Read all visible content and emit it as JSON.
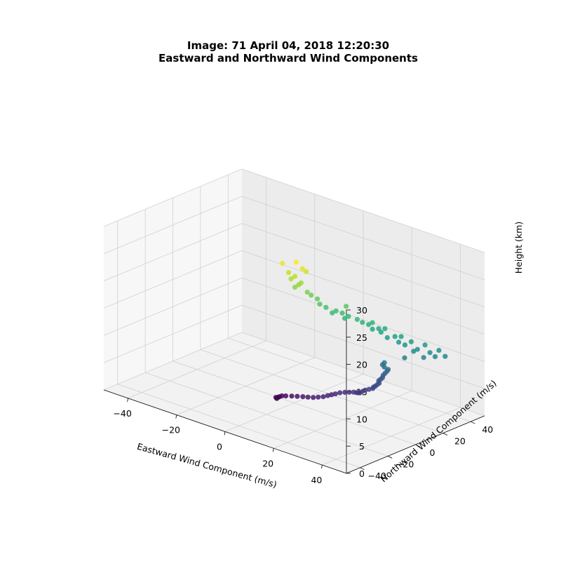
{
  "chart_data": {
    "type": "scatter3d",
    "title_line1": "Image: 71 April 04, 2018 12:20:30",
    "title_line2": "Eastward and Northward Wind Components",
    "xlabel": "Eastward Wind Component (m/s)",
    "ylabel": "Northward Wind Component (m/s)",
    "zlabel": "Height (km)",
    "xlim": [
      -50,
      50
    ],
    "ylim": [
      -50,
      50
    ],
    "zlim": [
      0,
      30
    ],
    "xticks": [
      -40,
      -20,
      0,
      20,
      40
    ],
    "yticks": [
      -40,
      -20,
      0,
      20,
      40
    ],
    "zticks": [
      0,
      5,
      10,
      15,
      20,
      25,
      30
    ],
    "colormap": "viridis",
    "color_by": "height",
    "grid": true,
    "points": [
      [
        -6.0,
        -2.0,
        0.1
      ],
      [
        -6.5,
        -1.8,
        0.2
      ],
      [
        -5.8,
        -1.2,
        0.3
      ],
      [
        -5.2,
        -1.5,
        0.5
      ],
      [
        -4.5,
        -1.0,
        0.7
      ],
      [
        -3.0,
        -0.8,
        0.9
      ],
      [
        -1.0,
        0.0,
        1.1
      ],
      [
        1.0,
        0.5,
        1.3
      ],
      [
        3.0,
        1.0,
        1.5
      ],
      [
        5.0,
        1.2,
        1.7
      ],
      [
        7.0,
        1.5,
        1.9
      ],
      [
        8.5,
        2.5,
        2.1
      ],
      [
        10.0,
        3.5,
        2.3
      ],
      [
        11.0,
        5.0,
        2.5
      ],
      [
        12.0,
        6.0,
        2.7
      ],
      [
        13.0,
        7.0,
        2.9
      ],
      [
        14.0,
        8.5,
        3.1
      ],
      [
        15.5,
        9.5,
        3.3
      ],
      [
        17.0,
        10.0,
        3.5
      ],
      [
        18.5,
        10.5,
        3.7
      ],
      [
        20.0,
        10.0,
        3.9
      ],
      [
        21.0,
        9.5,
        4.1
      ],
      [
        22.0,
        9.0,
        4.3
      ],
      [
        22.5,
        10.0,
        4.5
      ],
      [
        23.0,
        11.0,
        4.7
      ],
      [
        24.0,
        12.0,
        4.9
      ],
      [
        25.0,
        13.0,
        5.1
      ],
      [
        25.0,
        13.5,
        5.3
      ],
      [
        25.5,
        14.0,
        5.5
      ],
      [
        26.0,
        14.5,
        5.8
      ],
      [
        26.5,
        15.0,
        6.1
      ],
      [
        26.0,
        15.5,
        6.4
      ],
      [
        26.5,
        16.0,
        6.7
      ],
      [
        27.0,
        16.5,
        7.0
      ],
      [
        27.0,
        17.0,
        7.4
      ],
      [
        27.5,
        17.5,
        7.8
      ],
      [
        28.0,
        18.0,
        8.2
      ],
      [
        28.5,
        18.0,
        8.6
      ],
      [
        27.5,
        17.0,
        9.0
      ],
      [
        27.0,
        16.5,
        9.4
      ],
      [
        27.5,
        17.0,
        9.8
      ],
      [
        33.0,
        22.0,
        11.0
      ],
      [
        38.0,
        27.0,
        11.3
      ],
      [
        41.0,
        30.0,
        11.6
      ],
      [
        44.0,
        32.0,
        11.9
      ],
      [
        35.0,
        25.0,
        12.2
      ],
      [
        40.0,
        28.0,
        12.4
      ],
      [
        36.0,
        26.0,
        12.6
      ],
      [
        42.0,
        31.0,
        12.8
      ],
      [
        32.0,
        24.0,
        13.0
      ],
      [
        30.0,
        23.0,
        13.3
      ],
      [
        38.0,
        28.0,
        13.5
      ],
      [
        34.0,
        25.0,
        13.8
      ],
      [
        27.0,
        20.0,
        14.0
      ],
      [
        29.0,
        22.0,
        14.3
      ],
      [
        31.0,
        23.0,
        14.5
      ],
      [
        25.0,
        19.0,
        14.8
      ],
      [
        22.0,
        18.0,
        15.0
      ],
      [
        24.0,
        19.0,
        15.3
      ],
      [
        26.0,
        20.0,
        15.5
      ],
      [
        21.0,
        17.0,
        15.8
      ],
      [
        19.0,
        16.0,
        16.0
      ],
      [
        22.0,
        18.0,
        16.2
      ],
      [
        14.0,
        12.0,
        16.4
      ],
      [
        18.0,
        14.0,
        16.6
      ],
      [
        15.0,
        13.0,
        16.8
      ],
      [
        10.0,
        10.0,
        17.0
      ],
      [
        13.0,
        12.0,
        17.2
      ],
      [
        11.0,
        11.0,
        17.4
      ],
      [
        8.0,
        9.0,
        17.8
      ],
      [
        6.0,
        8.0,
        18.2
      ],
      [
        14.0,
        13.0,
        18.5
      ],
      [
        5.0,
        8.0,
        19.0
      ],
      [
        3.0,
        7.0,
        19.5
      ],
      [
        2.0,
        6.0,
        20.0
      ],
      [
        -2.0,
        4.0,
        20.5
      ],
      [
        -1.0,
        5.0,
        21.0
      ],
      [
        0.0,
        5.0,
        21.5
      ],
      [
        -3.0,
        3.0,
        22.0
      ],
      [
        -2.0,
        4.0,
        22.5
      ],
      [
        -4.0,
        3.0,
        23.0
      ],
      [
        1.0,
        7.0,
        23.5
      ],
      [
        0.0,
        6.0,
        24.0
      ],
      [
        -6.0,
        2.0,
        24.5
      ],
      [
        -2.0,
        5.0,
        25.0
      ]
    ]
  }
}
